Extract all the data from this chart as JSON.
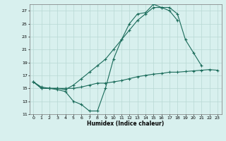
{
  "xlabel": "Humidex (Indice chaleur)",
  "bg_color": "#d8f0ee",
  "grid_color": "#b8d8d4",
  "line_color": "#1a6b5a",
  "xlim": [
    -0.5,
    23.5
  ],
  "ylim": [
    11,
    28
  ],
  "xticks": [
    0,
    1,
    2,
    3,
    4,
    5,
    6,
    7,
    8,
    9,
    10,
    11,
    12,
    13,
    14,
    15,
    16,
    17,
    18,
    19,
    20,
    21,
    22,
    23
  ],
  "yticks": [
    11,
    13,
    15,
    17,
    19,
    21,
    23,
    25,
    27
  ],
  "line1_x": [
    0,
    1,
    2,
    3,
    4,
    5,
    6,
    7,
    8,
    9,
    10,
    11,
    12,
    13,
    14,
    15,
    16,
    17,
    18,
    19,
    20,
    21
  ],
  "line1_y": [
    16.0,
    15.0,
    15.0,
    14.8,
    14.5,
    13.0,
    12.5,
    11.5,
    11.5,
    15.0,
    19.5,
    22.5,
    25.0,
    26.5,
    26.7,
    28.0,
    27.5,
    27.5,
    26.5,
    22.5,
    20.5,
    18.5
  ],
  "line2_x": [
    0,
    1,
    2,
    3,
    4,
    5,
    6,
    7,
    8,
    9,
    10,
    11,
    12,
    13,
    14,
    15,
    16,
    17,
    18
  ],
  "line2_y": [
    16.0,
    15.0,
    15.0,
    15.0,
    14.8,
    15.5,
    16.5,
    17.5,
    18.5,
    19.5,
    21.0,
    22.5,
    24.0,
    25.5,
    26.5,
    27.5,
    27.5,
    27.0,
    25.5
  ],
  "line3_x": [
    0,
    1,
    2,
    3,
    4,
    5,
    6,
    7,
    8,
    9,
    10,
    11,
    12,
    13,
    14,
    15,
    16,
    17,
    18,
    19,
    20,
    21,
    22,
    23
  ],
  "line3_y": [
    16.0,
    15.2,
    15.0,
    15.0,
    15.0,
    15.0,
    15.2,
    15.5,
    15.8,
    15.8,
    16.0,
    16.2,
    16.5,
    16.8,
    17.0,
    17.2,
    17.3,
    17.5,
    17.5,
    17.6,
    17.7,
    17.8,
    17.9,
    17.8
  ]
}
